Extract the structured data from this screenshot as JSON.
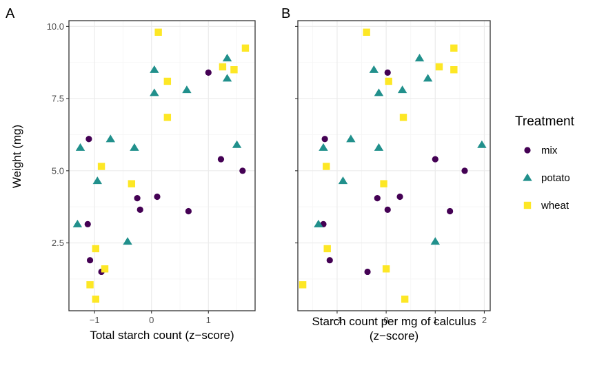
{
  "chart_data": [
    {
      "type": "scatter",
      "panel_tag": "A",
      "xlabel": [
        "Total starch count (z−score)"
      ],
      "ylabel": "Weight (mg)",
      "xlim": [
        -1.45,
        1.82
      ],
      "ylim": [
        0.15,
        10.2
      ],
      "xticks": [
        -1,
        0,
        1
      ],
      "xtick_labels": [
        "−1",
        "0",
        "1"
      ],
      "yticks": [
        2.5,
        5.0,
        7.5,
        10.0
      ],
      "ytick_labels": [
        "2.5",
        "5.0",
        "7.5",
        "10.0"
      ],
      "grid": true,
      "series": [
        {
          "name": "mix",
          "points": [
            {
              "x": -1.1,
              "y": 6.1
            },
            {
              "x": 1.0,
              "y": 8.4
            },
            {
              "x": 1.22,
              "y": 5.4
            },
            {
              "x": 1.6,
              "y": 5.0
            },
            {
              "x": -0.25,
              "y": 4.05
            },
            {
              "x": 0.1,
              "y": 4.1
            },
            {
              "x": -0.2,
              "y": 3.65
            },
            {
              "x": 0.65,
              "y": 3.6
            },
            {
              "x": -1.12,
              "y": 3.15
            },
            {
              "x": -1.08,
              "y": 1.9
            },
            {
              "x": -0.88,
              "y": 1.5
            }
          ]
        },
        {
          "name": "potato",
          "points": [
            {
              "x": -1.25,
              "y": 5.8
            },
            {
              "x": -0.72,
              "y": 6.1
            },
            {
              "x": -0.3,
              "y": 5.8
            },
            {
              "x": -0.95,
              "y": 4.65
            },
            {
              "x": 0.05,
              "y": 8.5
            },
            {
              "x": 0.05,
              "y": 7.7
            },
            {
              "x": 0.62,
              "y": 7.8
            },
            {
              "x": 1.33,
              "y": 8.9
            },
            {
              "x": 1.33,
              "y": 8.2
            },
            {
              "x": 1.5,
              "y": 5.9
            },
            {
              "x": -1.3,
              "y": 3.15
            },
            {
              "x": -0.42,
              "y": 2.55
            }
          ]
        },
        {
          "name": "wheat",
          "points": [
            {
              "x": 0.12,
              "y": 9.8
            },
            {
              "x": 0.28,
              "y": 8.1
            },
            {
              "x": 0.28,
              "y": 6.85
            },
            {
              "x": 1.25,
              "y": 8.6
            },
            {
              "x": 1.45,
              "y": 8.5
            },
            {
              "x": 1.65,
              "y": 9.25
            },
            {
              "x": -0.88,
              "y": 5.15
            },
            {
              "x": -0.35,
              "y": 4.55
            },
            {
              "x": -0.98,
              "y": 2.3
            },
            {
              "x": -0.82,
              "y": 1.6
            },
            {
              "x": -1.08,
              "y": 1.05
            },
            {
              "x": -0.98,
              "y": 0.55
            }
          ]
        }
      ]
    },
    {
      "type": "scatter",
      "panel_tag": "B",
      "xlabel": [
        "Starch count per mg of calculus",
        "(z−score)"
      ],
      "ylabel": "",
      "xlim": [
        -1.8,
        2.12
      ],
      "ylim": [
        0.15,
        10.2
      ],
      "xticks": [
        -1,
        0,
        1,
        2
      ],
      "xtick_labels": [
        "−1",
        "0",
        "1",
        "2"
      ],
      "yticks": [
        2.5,
        5.0,
        7.5,
        10.0
      ],
      "ytick_labels": [
        "",
        "",
        "",
        ""
      ],
      "grid": true,
      "series": [
        {
          "name": "mix",
          "points": [
            {
              "x": -1.25,
              "y": 6.1
            },
            {
              "x": 0.03,
              "y": 8.4
            },
            {
              "x": 1.0,
              "y": 5.4
            },
            {
              "x": 1.6,
              "y": 5.0
            },
            {
              "x": -0.18,
              "y": 4.05
            },
            {
              "x": 0.28,
              "y": 4.1
            },
            {
              "x": 0.03,
              "y": 3.65
            },
            {
              "x": 1.3,
              "y": 3.6
            },
            {
              "x": -1.28,
              "y": 3.15
            },
            {
              "x": -1.15,
              "y": 1.9
            },
            {
              "x": -0.38,
              "y": 1.5
            }
          ]
        },
        {
          "name": "potato",
          "points": [
            {
              "x": -1.28,
              "y": 5.8
            },
            {
              "x": -0.72,
              "y": 6.1
            },
            {
              "x": -0.15,
              "y": 5.8
            },
            {
              "x": -0.88,
              "y": 4.65
            },
            {
              "x": -0.25,
              "y": 8.5
            },
            {
              "x": -0.15,
              "y": 7.7
            },
            {
              "x": 0.33,
              "y": 7.8
            },
            {
              "x": 0.68,
              "y": 8.9
            },
            {
              "x": 0.85,
              "y": 8.2
            },
            {
              "x": 1.95,
              "y": 5.9
            },
            {
              "x": -1.38,
              "y": 3.15
            },
            {
              "x": 1.0,
              "y": 2.55
            }
          ]
        },
        {
          "name": "wheat",
          "points": [
            {
              "x": -0.4,
              "y": 9.8
            },
            {
              "x": 0.05,
              "y": 8.1
            },
            {
              "x": 0.35,
              "y": 6.85
            },
            {
              "x": 1.08,
              "y": 8.6
            },
            {
              "x": 1.38,
              "y": 8.5
            },
            {
              "x": 1.38,
              "y": 9.25
            },
            {
              "x": -1.22,
              "y": 5.15
            },
            {
              "x": -0.05,
              "y": 4.55
            },
            {
              "x": -1.2,
              "y": 2.3
            },
            {
              "x": 0.0,
              "y": 1.6
            },
            {
              "x": -1.7,
              "y": 1.05
            },
            {
              "x": 0.38,
              "y": 0.55
            }
          ]
        }
      ]
    }
  ],
  "legend": {
    "title": "Treatment",
    "entries": [
      {
        "label": "mix",
        "shape": "circle",
        "color": "#440154"
      },
      {
        "label": "potato",
        "shape": "triangle",
        "color": "#21908C"
      },
      {
        "label": "wheat",
        "shape": "square",
        "color": "#FDE725"
      }
    ]
  },
  "colors": {
    "mix": "#440154",
    "potato": "#21908C",
    "wheat": "#FDE725",
    "grid_major": "#EBEBEB",
    "grid_minor": "#F5F5F5",
    "panel_border": "#333333"
  }
}
